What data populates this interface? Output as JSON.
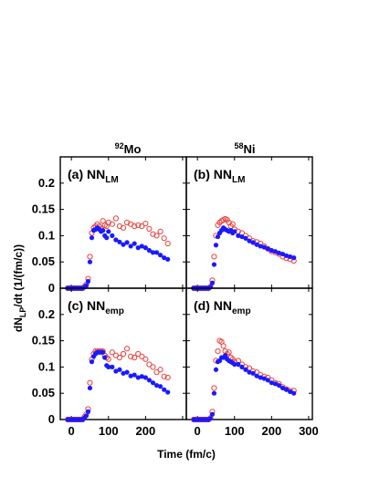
{
  "figure": {
    "col_titles": [
      {
        "pre": "92",
        "main": "Mo"
      },
      {
        "pre": "58",
        "main": "Ni"
      }
    ],
    "ylabel": {
      "a": "dN",
      "sub": "LP",
      "b": "/dt (1/(fm/c))"
    },
    "xlabel": "Time (fm/c)",
    "y_ticks": [
      "0",
      "0.05",
      "0.1",
      "0.15",
      "0.2"
    ],
    "x_ticks": [
      "0",
      "100",
      "200",
      "300"
    ],
    "colors": {
      "filled": "#1a1aff",
      "open": "#e8413c"
    }
  },
  "chart_data": [
    {
      "type": "scatter",
      "panel": "(a)",
      "label": {
        "pre": "(a) NN",
        "sub": "LM"
      },
      "column": "92Mo",
      "xlim": [
        -30,
        310
      ],
      "ylim": [
        0,
        0.25
      ],
      "series": [
        {
          "marker": "filled-circle",
          "color": "#1a1aff",
          "x": [
            -10,
            -5,
            0,
            5,
            10,
            15,
            20,
            25,
            30,
            35,
            40,
            45,
            50,
            55,
            60,
            65,
            70,
            75,
            80,
            85,
            90,
            95,
            100,
            110,
            120,
            130,
            140,
            150,
            160,
            170,
            180,
            190,
            200,
            210,
            220,
            230,
            240,
            250,
            260
          ],
          "y": [
            0,
            0,
            0,
            0,
            0,
            0,
            0,
            0,
            0,
            0.002,
            0.005,
            0.013,
            0.05,
            0.096,
            0.11,
            0.112,
            0.115,
            0.112,
            0.108,
            0.11,
            0.1,
            0.096,
            0.108,
            0.1,
            0.092,
            0.088,
            0.083,
            0.087,
            0.08,
            0.085,
            0.077,
            0.08,
            0.077,
            0.072,
            0.068,
            0.068,
            0.063,
            0.058,
            0.055
          ]
        },
        {
          "marker": "open-circle",
          "color": "#e8413c",
          "x": [
            -10,
            -5,
            0,
            5,
            10,
            15,
            20,
            25,
            30,
            35,
            40,
            45,
            50,
            55,
            60,
            65,
            70,
            75,
            80,
            85,
            90,
            95,
            100,
            110,
            120,
            130,
            140,
            150,
            160,
            170,
            180,
            190,
            200,
            210,
            220,
            230,
            240,
            250,
            260
          ],
          "y": [
            0,
            0,
            0,
            0,
            0,
            0,
            0,
            0,
            0,
            0.003,
            0.007,
            0.018,
            0.06,
            0.105,
            0.115,
            0.118,
            0.122,
            0.118,
            0.113,
            0.128,
            0.12,
            0.118,
            0.125,
            0.122,
            0.133,
            0.118,
            0.115,
            0.125,
            0.122,
            0.118,
            0.12,
            0.118,
            0.123,
            0.113,
            0.103,
            0.1,
            0.108,
            0.095,
            0.085
          ]
        }
      ]
    },
    {
      "type": "scatter",
      "panel": "(b)",
      "label": {
        "pre": "(b) NN",
        "sub": "LM"
      },
      "column": "58Ni",
      "xlim": [
        -30,
        310
      ],
      "ylim": [
        0,
        0.25
      ],
      "series": [
        {
          "marker": "filled-circle",
          "color": "#1a1aff",
          "x": [
            -10,
            -5,
            0,
            5,
            10,
            15,
            20,
            25,
            30,
            35,
            40,
            45,
            50,
            55,
            60,
            65,
            70,
            75,
            80,
            85,
            90,
            95,
            100,
            110,
            120,
            130,
            140,
            150,
            160,
            170,
            180,
            190,
            200,
            210,
            220,
            230,
            240,
            250,
            260
          ],
          "y": [
            0,
            0,
            0,
            0,
            0,
            0,
            0,
            0,
            0,
            0.002,
            0.01,
            0.045,
            0.082,
            0.098,
            0.105,
            0.11,
            0.115,
            0.112,
            0.11,
            0.108,
            0.11,
            0.105,
            0.108,
            0.1,
            0.098,
            0.095,
            0.09,
            0.087,
            0.083,
            0.08,
            0.078,
            0.075,
            0.072,
            0.07,
            0.067,
            0.065,
            0.062,
            0.06,
            0.058
          ]
        },
        {
          "marker": "open-circle",
          "color": "#e8413c",
          "x": [
            -10,
            -5,
            0,
            5,
            10,
            15,
            20,
            25,
            30,
            35,
            40,
            45,
            50,
            55,
            60,
            65,
            70,
            75,
            80,
            85,
            90,
            95,
            100,
            110,
            120,
            130,
            140,
            150,
            160,
            170,
            180,
            190,
            200,
            210,
            220,
            230,
            240,
            250,
            260
          ],
          "y": [
            0,
            0,
            0,
            0,
            0,
            0,
            0,
            0,
            0,
            0.003,
            0.015,
            0.06,
            0.1,
            0.12,
            0.125,
            0.128,
            0.13,
            0.132,
            0.13,
            0.125,
            0.118,
            0.122,
            0.112,
            0.108,
            0.105,
            0.1,
            0.095,
            0.09,
            0.088,
            0.085,
            0.08,
            0.075,
            0.07,
            0.068,
            0.065,
            0.06,
            0.057,
            0.055,
            0.052
          ]
        }
      ]
    },
    {
      "type": "scatter",
      "panel": "(c)",
      "label": {
        "pre": "(c) NN",
        "sub": "emp"
      },
      "column": "92Mo",
      "xlim": [
        -30,
        310
      ],
      "ylim": [
        0,
        0.25
      ],
      "series": [
        {
          "marker": "filled-circle",
          "color": "#1a1aff",
          "x": [
            -10,
            -5,
            0,
            5,
            10,
            15,
            20,
            25,
            30,
            35,
            40,
            45,
            50,
            55,
            60,
            65,
            70,
            75,
            80,
            85,
            90,
            95,
            100,
            110,
            120,
            130,
            140,
            150,
            160,
            170,
            180,
            190,
            200,
            210,
            220,
            230,
            240,
            250,
            260
          ],
          "y": [
            0,
            0,
            0,
            0,
            0,
            0,
            0,
            0,
            0,
            0.003,
            0.007,
            0.015,
            0.06,
            0.11,
            0.12,
            0.125,
            0.128,
            0.128,
            0.128,
            0.128,
            0.118,
            0.103,
            0.1,
            0.1,
            0.092,
            0.095,
            0.088,
            0.09,
            0.083,
            0.085,
            0.08,
            0.082,
            0.08,
            0.075,
            0.07,
            0.065,
            0.063,
            0.057,
            0.052
          ]
        },
        {
          "marker": "open-circle",
          "color": "#e8413c",
          "x": [
            -10,
            -5,
            0,
            5,
            10,
            15,
            20,
            25,
            30,
            35,
            40,
            45,
            50,
            55,
            60,
            65,
            70,
            75,
            80,
            85,
            90,
            95,
            100,
            110,
            120,
            130,
            140,
            150,
            160,
            170,
            180,
            190,
            200,
            210,
            220,
            230,
            240,
            250,
            260
          ],
          "y": [
            0,
            0,
            0,
            0,
            0,
            0,
            0,
            0,
            0,
            0.005,
            0.01,
            0.02,
            0.07,
            0.115,
            0.125,
            0.13,
            0.13,
            0.13,
            0.13,
            0.13,
            0.122,
            0.118,
            0.115,
            0.128,
            0.122,
            0.118,
            0.125,
            0.135,
            0.12,
            0.118,
            0.125,
            0.12,
            0.115,
            0.105,
            0.1,
            0.09,
            0.095,
            0.082,
            0.08
          ]
        }
      ]
    },
    {
      "type": "scatter",
      "panel": "(d)",
      "label": {
        "pre": "(d) NN",
        "sub": "emp"
      },
      "column": "58Ni",
      "xlim": [
        -30,
        310
      ],
      "ylim": [
        0,
        0.25
      ],
      "series": [
        {
          "marker": "filled-circle",
          "color": "#1a1aff",
          "x": [
            -10,
            -5,
            0,
            5,
            10,
            15,
            20,
            25,
            30,
            35,
            40,
            45,
            50,
            55,
            60,
            65,
            70,
            75,
            80,
            85,
            90,
            95,
            100,
            110,
            120,
            130,
            140,
            150,
            160,
            170,
            180,
            190,
            200,
            210,
            220,
            230,
            240,
            250,
            260
          ],
          "y": [
            0,
            0,
            0,
            0,
            0,
            0,
            0,
            0,
            0,
            0.002,
            0.01,
            0.05,
            0.095,
            0.11,
            0.112,
            0.118,
            0.118,
            0.122,
            0.115,
            0.112,
            0.11,
            0.108,
            0.105,
            0.105,
            0.1,
            0.095,
            0.09,
            0.088,
            0.083,
            0.08,
            0.078,
            0.075,
            0.07,
            0.068,
            0.065,
            0.06,
            0.057,
            0.053,
            0.05
          ]
        },
        {
          "marker": "open-circle",
          "color": "#e8413c",
          "x": [
            -10,
            -5,
            0,
            5,
            10,
            15,
            20,
            25,
            30,
            35,
            40,
            45,
            50,
            55,
            60,
            65,
            70,
            75,
            80,
            85,
            90,
            95,
            100,
            110,
            120,
            130,
            140,
            150,
            160,
            170,
            180,
            190,
            200,
            210,
            220,
            230,
            240,
            250,
            260
          ],
          "y": [
            0,
            0,
            0,
            0,
            0,
            0,
            0,
            0,
            0,
            0.003,
            0.015,
            0.06,
            0.112,
            0.13,
            0.15,
            0.148,
            0.14,
            0.13,
            0.125,
            0.128,
            0.118,
            0.115,
            0.11,
            0.112,
            0.105,
            0.1,
            0.098,
            0.092,
            0.09,
            0.085,
            0.082,
            0.08,
            0.075,
            0.07,
            0.068,
            0.062,
            0.058,
            0.055,
            0.055
          ]
        }
      ]
    }
  ]
}
